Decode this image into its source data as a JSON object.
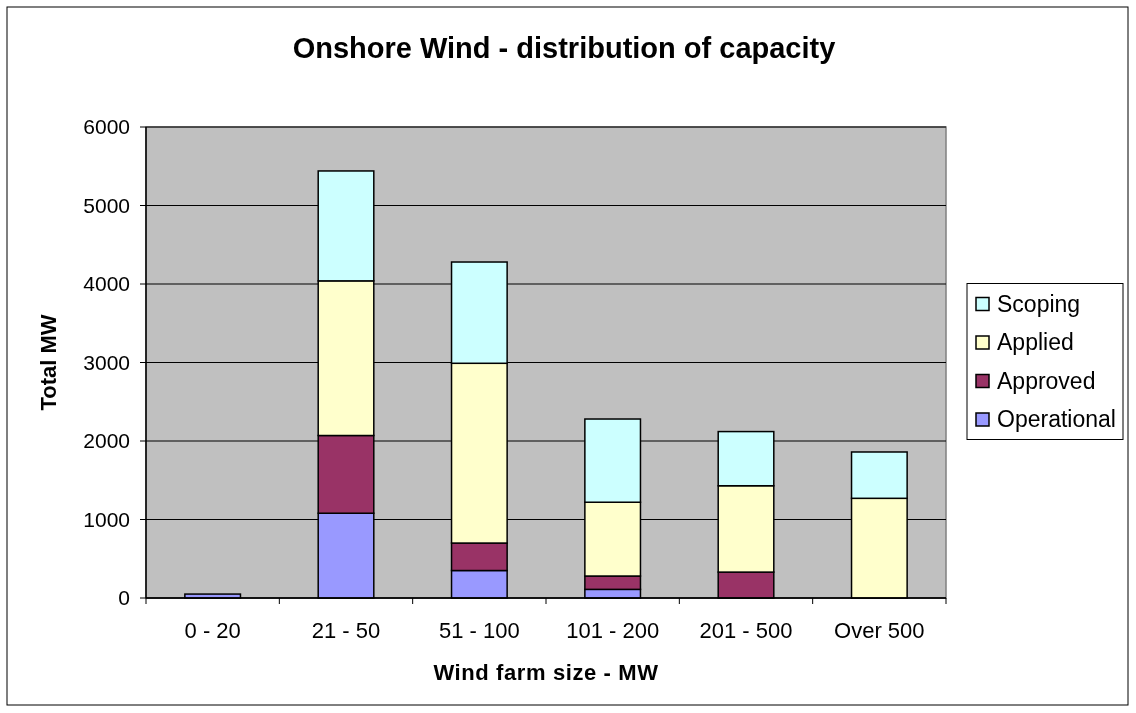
{
  "chart_data": {
    "type": "bar",
    "title": "Onshore Wind - distribution of capacity",
    "xlabel": "Wind farm size - MW",
    "ylabel": "Total MW",
    "categories": [
      "0 - 20",
      "21 - 50",
      "51 - 100",
      "101 - 200",
      "201 - 500",
      "Over 500"
    ],
    "series": [
      {
        "name": "Operational",
        "color": "#9999ff",
        "values": [
          50,
          1080,
          350,
          110,
          null,
          null
        ]
      },
      {
        "name": "Approved",
        "color": "#993366",
        "values": [
          null,
          990,
          350,
          170,
          330,
          null
        ]
      },
      {
        "name": "Applied",
        "color": "#ffffcc",
        "values": [
          null,
          1970,
          2290,
          940,
          1100,
          1270
        ]
      },
      {
        "name": "Scoping",
        "color": "#ccffff",
        "values": [
          null,
          1400,
          1290,
          1060,
          690,
          590
        ]
      }
    ],
    "stacked": true,
    "ylim": [
      0,
      6000
    ],
    "yticks": [
      0,
      1000,
      2000,
      3000,
      4000,
      5000,
      6000
    ],
    "grid": "y",
    "legend": "right"
  }
}
